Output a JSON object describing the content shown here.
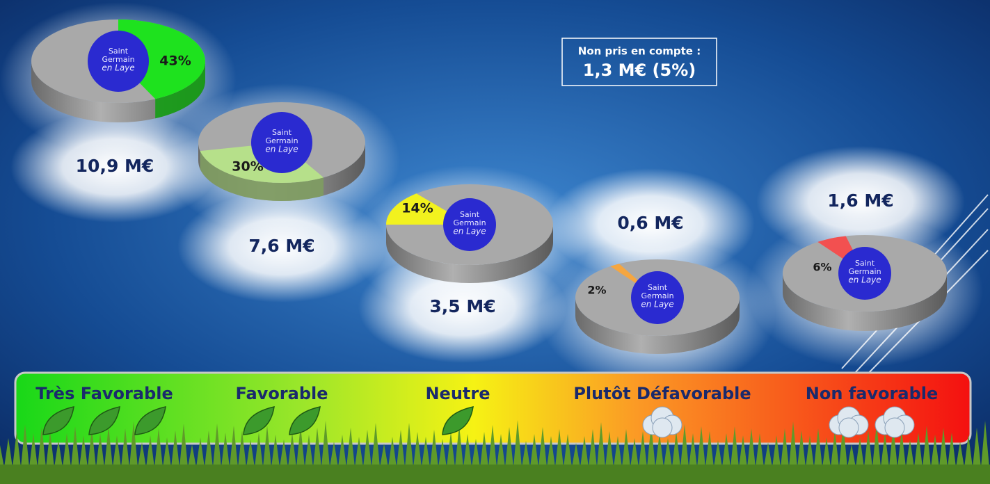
{
  "chart_data": [
    {
      "type": "pie",
      "category": "Très Favorable",
      "amount": "10,9 M€",
      "values": [
        43
      ],
      "value_labels": [
        "43%"
      ],
      "colors": [
        "#1ee21e"
      ]
    },
    {
      "type": "pie",
      "category": "Favorable",
      "amount": "7,6 M€",
      "values": [
        30
      ],
      "value_labels": [
        "30%"
      ],
      "colors": [
        "#b6e08a"
      ]
    },
    {
      "type": "pie",
      "category": "Neutre",
      "amount": "3,5 M€",
      "values": [
        14
      ],
      "value_labels": [
        "14%"
      ],
      "colors": [
        "#f2f21e"
      ]
    },
    {
      "type": "pie",
      "category": "Plutôt Défavorable",
      "amount": "0,6 M€",
      "values": [
        2
      ],
      "value_labels": [
        "2%"
      ],
      "colors": [
        "#f5a640"
      ]
    },
    {
      "type": "pie",
      "category": "Non favorable",
      "amount": "1,6 M€",
      "values": [
        6
      ],
      "value_labels": [
        "6%"
      ],
      "colors": [
        "#f25050"
      ]
    }
  ],
  "note": {
    "title": "Non pris en compte :",
    "value": "1,3 M€ (5%)"
  },
  "logo": {
    "lines": [
      "Saint",
      "Germain",
      "en Laye"
    ]
  }
}
